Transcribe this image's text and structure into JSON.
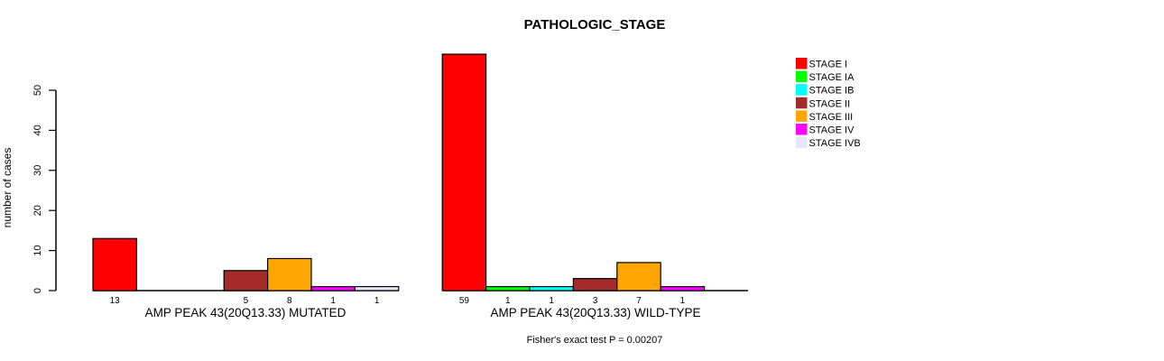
{
  "chart_data": {
    "type": "bar",
    "title": "PATHOLOGIC_STAGE",
    "ylabel": "number of cases",
    "xlabel": "",
    "annotation": "Fisher's exact test P = 0.00207",
    "ylim": [
      0,
      50
    ],
    "yticks": [
      0,
      10,
      20,
      30,
      40,
      50
    ],
    "grid": false,
    "legend_position": "right",
    "background_color": "#FFFFFF",
    "axis_color": "#000000",
    "categories": [
      "STAGE I",
      "STAGE IA",
      "STAGE IB",
      "STAGE II",
      "STAGE III",
      "STAGE IV",
      "STAGE IVB"
    ],
    "colors": [
      "#FF0000",
      "#00FF00",
      "#00FFFF",
      "#A52A2A",
      "#FFA500",
      "#FF00FF",
      "#E6E6FA"
    ],
    "series": [
      {
        "name": "AMP PEAK 43(20Q13.33) MUTATED",
        "values": [
          13,
          0,
          0,
          5,
          8,
          1,
          1
        ]
      },
      {
        "name": "AMP PEAK 43(20Q13.33) WILD-TYPE",
        "values": [
          59,
          1,
          1,
          3,
          7,
          1,
          0
        ]
      }
    ],
    "bar_value_labels": true,
    "hide_zero_bars": true
  }
}
